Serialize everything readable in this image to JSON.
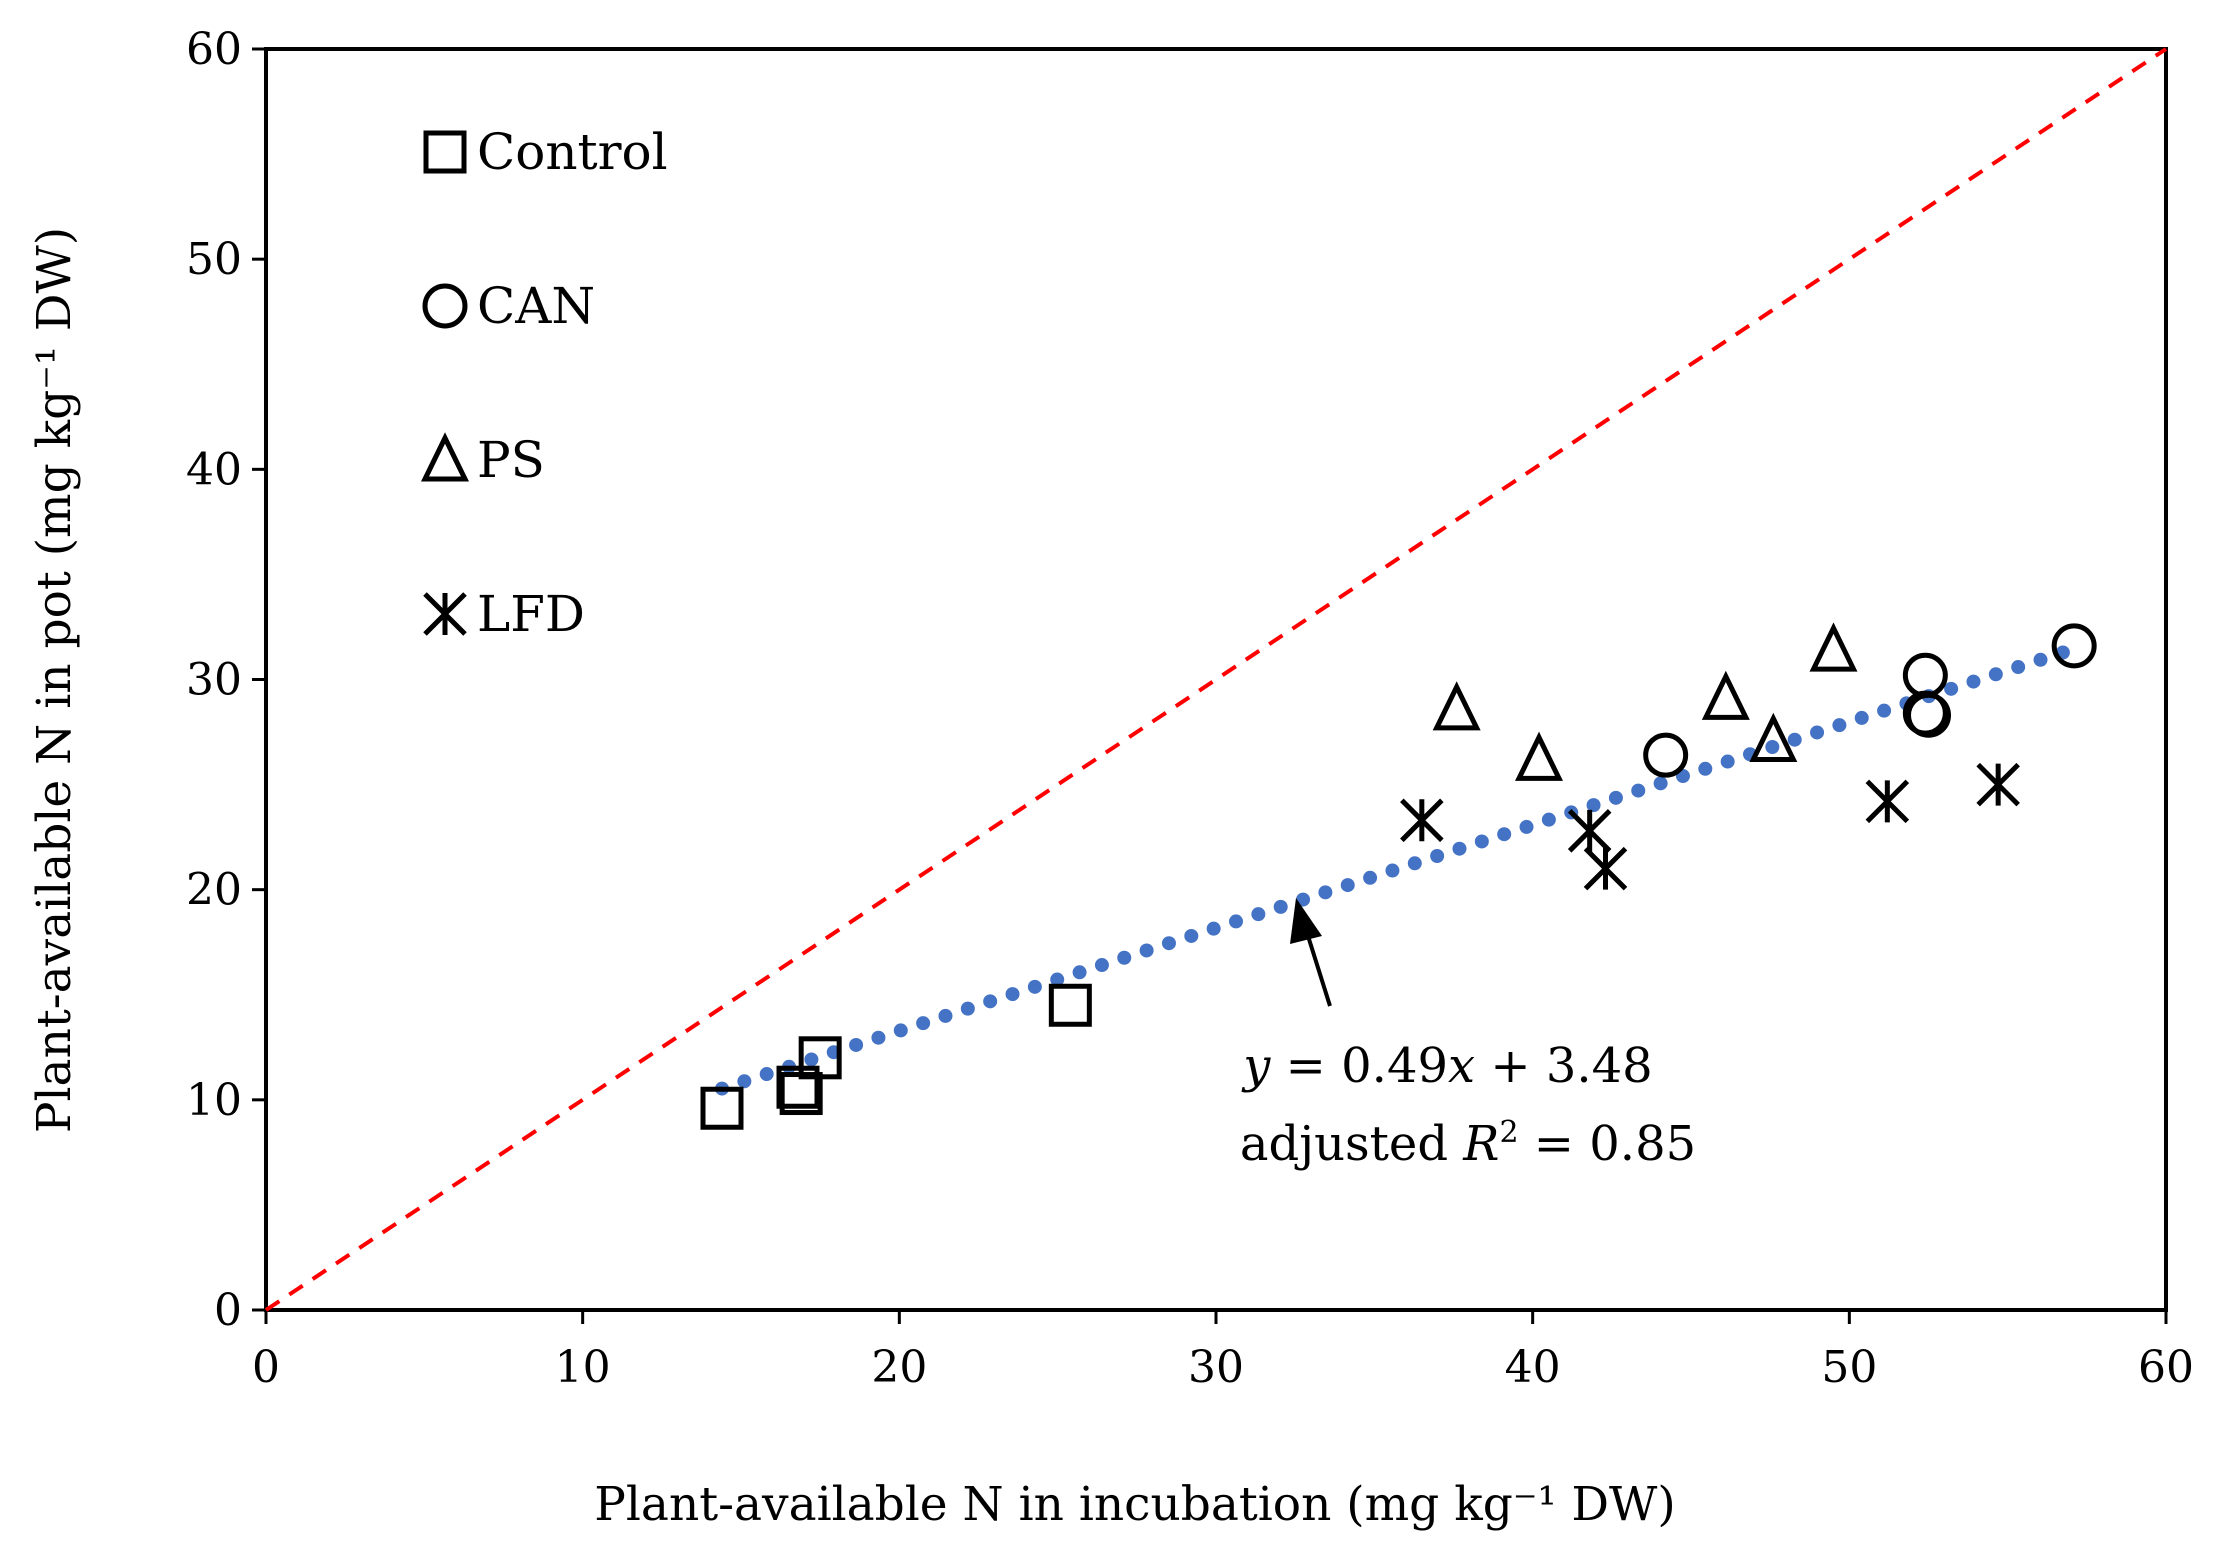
{
  "chart_data": {
    "type": "scatter",
    "title": "",
    "xlabel": "Plant-available N in incubation (mg kg⁻¹ DW)",
    "ylabel": "Plant-available N in pot (mg kg⁻¹ DW)",
    "xlim": [
      0,
      60
    ],
    "ylim": [
      0,
      60
    ],
    "xticks": [
      "0",
      "10",
      "20",
      "30",
      "40",
      "50",
      "60"
    ],
    "yticks": [
      "0",
      "10",
      "20",
      "30",
      "40",
      "50",
      "60"
    ],
    "grid": false,
    "legend_position": "top-left",
    "series": [
      {
        "name": "Control",
        "marker": "square",
        "points": [
          [
            14.4,
            9.6
          ],
          [
            16.8,
            10.6
          ],
          [
            16.9,
            10.3
          ],
          [
            17.5,
            12.0
          ],
          [
            25.4,
            14.5
          ]
        ]
      },
      {
        "name": "CAN",
        "marker": "circle",
        "points": [
          [
            44.2,
            26.4
          ],
          [
            52.4,
            30.2
          ],
          [
            52.4,
            28.4
          ],
          [
            52.5,
            28.3
          ],
          [
            57.1,
            31.6
          ]
        ]
      },
      {
        "name": "PS",
        "marker": "triangle",
        "points": [
          [
            37.6,
            28.6
          ],
          [
            40.2,
            26.2
          ],
          [
            46.1,
            29.1
          ],
          [
            47.6,
            27.1
          ],
          [
            49.5,
            31.4
          ]
        ]
      },
      {
        "name": "LFD",
        "marker": "asterisk",
        "points": [
          [
            36.5,
            23.3
          ],
          [
            41.8,
            22.8
          ],
          [
            42.3,
            21.0
          ],
          [
            51.2,
            24.2
          ],
          [
            54.7,
            25.0
          ]
        ]
      }
    ],
    "reference_line": {
      "name": "1:1 line",
      "color": "#ff0000",
      "style": "dashed",
      "from": [
        0,
        0
      ],
      "to": [
        60,
        60
      ]
    },
    "trendline": {
      "slope": 0.49,
      "intercept": 3.48,
      "x_range": [
        14.4,
        57.1
      ],
      "color": "#4472c4",
      "style": "dotted"
    },
    "annotation": {
      "equation_var": "y",
      "equation_mid": " = 0.49",
      "equation_x": "x",
      "equation_rest": " + 3.48",
      "r2_prefix": "adjusted ",
      "r2_var": "R",
      "r2_sup": "2",
      "r2_rest": " = 0.85",
      "arrow_points_to": [
        33.0,
        19.6
      ]
    }
  }
}
